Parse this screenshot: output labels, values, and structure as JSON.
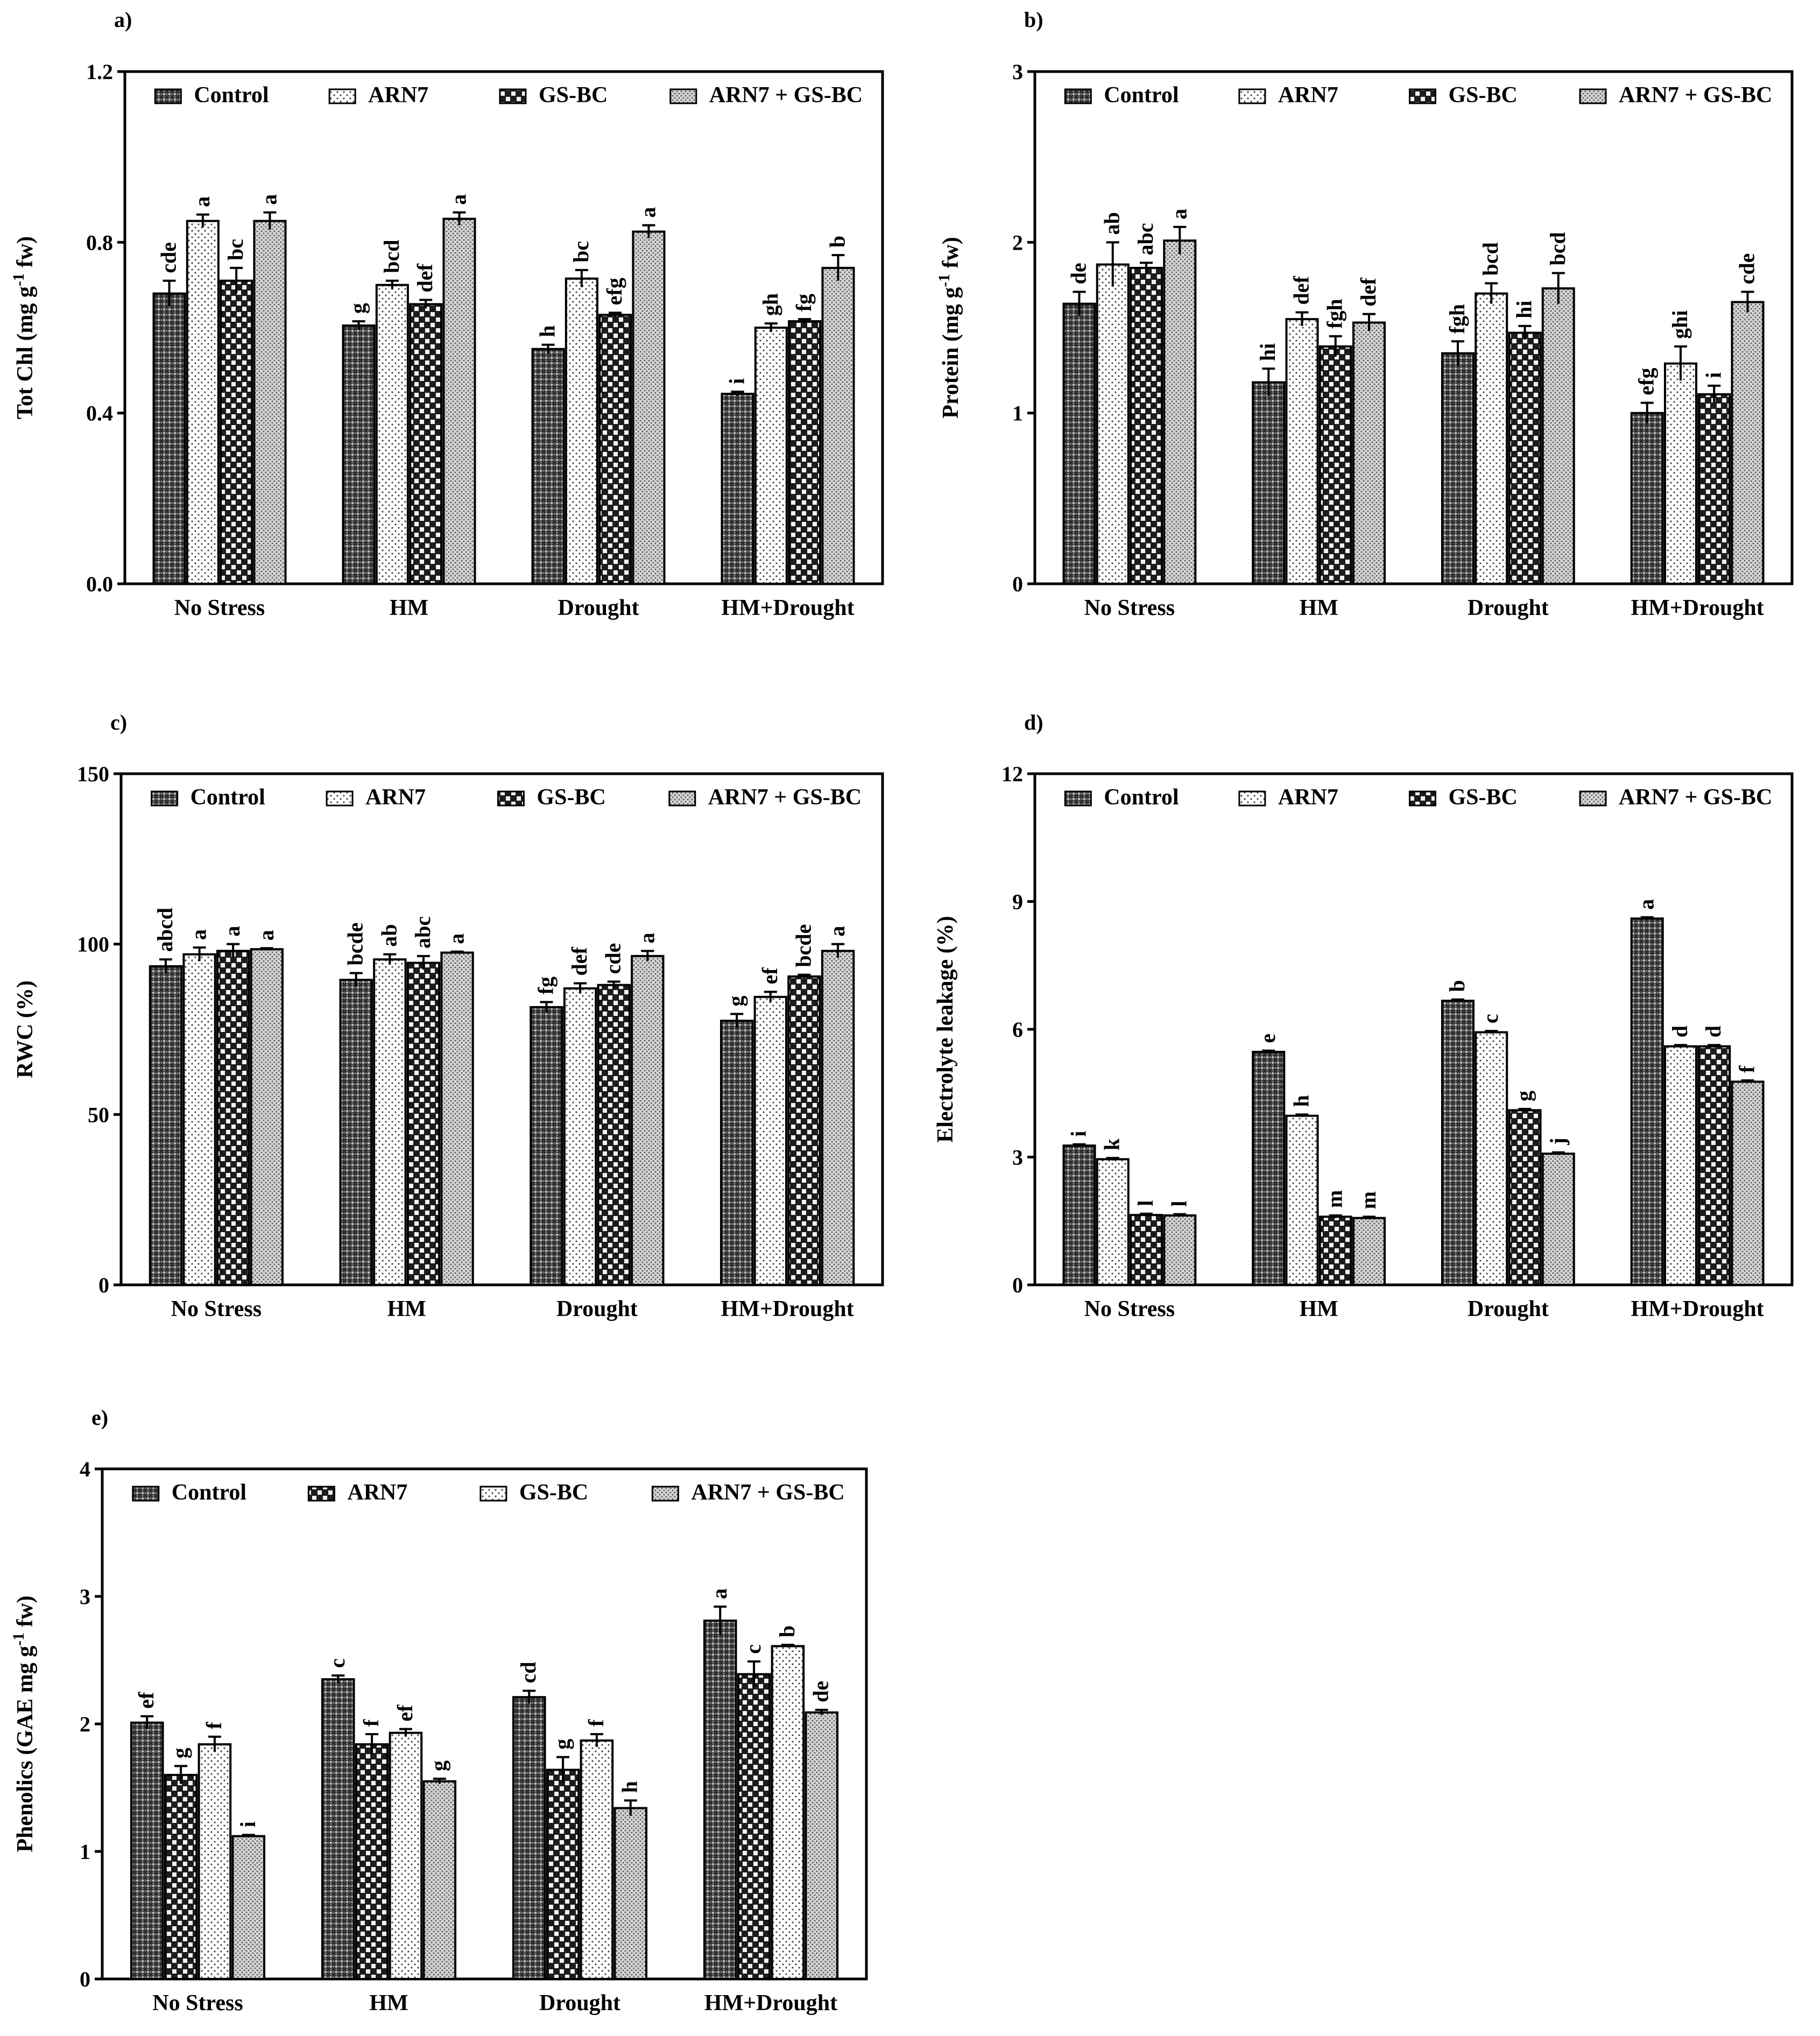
{
  "figure": {
    "categories": [
      "No Stress",
      "HM",
      "Drought",
      "HM+Drought"
    ]
  },
  "chart_data": [
    {
      "panel": "a)",
      "type": "bar",
      "ylabel_html": "Tot Chl (mg g<tspan baseline-shift='super' font-size='70%'>-1</tspan> fw)",
      "ylabel": "Tot Chl (mg g-1 fw)",
      "ylim": [
        0,
        1.2
      ],
      "yticks": [
        "0.0",
        "0.4",
        "0.8",
        "1.2"
      ],
      "ytick_values": [
        0,
        0.4,
        0.8,
        1.2
      ],
      "categories": [
        "No Stress",
        "HM",
        "Drought",
        "HM+Drought"
      ],
      "legend": [
        "Control",
        "ARN7",
        "GS-BC",
        "ARN7 + GS-BC"
      ],
      "patterns": [
        "dark",
        "dots",
        "check",
        "fine"
      ],
      "series": [
        {
          "name": "Control",
          "values": [
            0.68,
            0.605,
            0.55,
            0.445
          ],
          "errors": [
            0.03,
            0.01,
            0.01,
            0.005
          ],
          "letters": [
            "cde",
            "g",
            "h",
            "i"
          ]
        },
        {
          "name": "ARN7",
          "values": [
            0.85,
            0.7,
            0.715,
            0.6
          ],
          "errors": [
            0.015,
            0.01,
            0.02,
            0.01
          ],
          "letters": [
            "a",
            "bcd",
            "bc",
            "gh"
          ]
        },
        {
          "name": "GS-BC",
          "values": [
            0.71,
            0.655,
            0.63,
            0.615
          ],
          "errors": [
            0.03,
            0.01,
            0.005,
            0.005
          ],
          "letters": [
            "bc",
            "def",
            "efg",
            "fg"
          ]
        },
        {
          "name": "ARN7 + GS-BC",
          "values": [
            0.85,
            0.855,
            0.825,
            0.74
          ],
          "errors": [
            0.02,
            0.015,
            0.015,
            0.03
          ],
          "letters": [
            "a",
            "a",
            "a",
            "b"
          ]
        }
      ]
    },
    {
      "panel": "b)",
      "type": "bar",
      "ylabel_html": "Protein (mg g<tspan baseline-shift='super' font-size='70%'>-1</tspan> fw)",
      "ylabel": "Protein (mg g-1 fw)",
      "ylim": [
        0,
        3
      ],
      "yticks": [
        "0",
        "1",
        "2",
        "3"
      ],
      "ytick_values": [
        0,
        1,
        2,
        3
      ],
      "categories": [
        "No Stress",
        "HM",
        "Drought",
        "HM+Drought"
      ],
      "legend": [
        "Control",
        "ARN7",
        "GS-BC",
        "ARN7 + GS-BC"
      ],
      "patterns": [
        "dark",
        "dots",
        "check",
        "fine"
      ],
      "series": [
        {
          "name": "Control",
          "values": [
            1.64,
            1.18,
            1.35,
            1.0
          ],
          "errors": [
            0.07,
            0.08,
            0.07,
            0.06
          ],
          "letters": [
            "de",
            "hi",
            "fgh",
            "efg"
          ]
        },
        {
          "name": "ARN7",
          "values": [
            1.87,
            1.55,
            1.7,
            1.29
          ],
          "errors": [
            0.13,
            0.04,
            0.06,
            0.1
          ],
          "letters": [
            "ab",
            "def",
            "bcd",
            "ghi"
          ]
        },
        {
          "name": "GS-BC",
          "values": [
            1.85,
            1.39,
            1.47,
            1.11
          ],
          "errors": [
            0.03,
            0.06,
            0.04,
            0.05
          ],
          "letters": [
            "abc",
            "fgh",
            "hi",
            "i"
          ]
        },
        {
          "name": "ARN7 + GS-BC",
          "values": [
            2.01,
            1.53,
            1.73,
            1.65
          ],
          "errors": [
            0.08,
            0.05,
            0.09,
            0.06
          ],
          "letters": [
            "a",
            "def",
            "bcd",
            "cde"
          ]
        }
      ]
    },
    {
      "panel": "c)",
      "type": "bar",
      "ylabel_html": "RWC (%)",
      "ylabel": "RWC (%)",
      "ylim": [
        0,
        150
      ],
      "yticks": [
        "0",
        "50",
        "100",
        "150"
      ],
      "ytick_values": [
        0,
        50,
        100,
        150
      ],
      "categories": [
        "No Stress",
        "HM",
        "Drought",
        "HM+Drought"
      ],
      "legend": [
        "Control",
        "ARN7",
        "GS-BC",
        "ARN7 + GS-BC"
      ],
      "patterns": [
        "dark",
        "dots",
        "check",
        "fine"
      ],
      "series": [
        {
          "name": "Control",
          "values": [
            93.5,
            89.5,
            81.5,
            77.5
          ],
          "errors": [
            2,
            2,
            1.5,
            2
          ],
          "letters": [
            "abcd",
            "bcde",
            "fg",
            "g"
          ]
        },
        {
          "name": "ARN7",
          "values": [
            97,
            95.5,
            87,
            84.5
          ],
          "errors": [
            2,
            1.5,
            1.5,
            1.5
          ],
          "letters": [
            "a",
            "ab",
            "def",
            "ef"
          ]
        },
        {
          "name": "GS-BC",
          "values": [
            98,
            94.5,
            88,
            90.5
          ],
          "errors": [
            2,
            2,
            1,
            0.5
          ],
          "letters": [
            "a",
            "abc",
            "cde",
            "bcde"
          ]
        },
        {
          "name": "ARN7 + GS-BC",
          "values": [
            98.5,
            97.5,
            96.5,
            98
          ],
          "errors": [
            0.3,
            0.3,
            1.5,
            2
          ],
          "letters": [
            "a",
            "a",
            "a",
            "a"
          ]
        }
      ]
    },
    {
      "panel": "d)",
      "type": "bar",
      "ylabel_html": "Electrolyte leakage (%)",
      "ylabel": "Electrolyte leakage (%)",
      "ylim": [
        0,
        12
      ],
      "yticks": [
        "0",
        "3",
        "6",
        "9",
        "12"
      ],
      "ytick_values": [
        0,
        3,
        6,
        9,
        12
      ],
      "categories": [
        "No Stress",
        "HM",
        "Drought",
        "HM+Drought"
      ],
      "legend": [
        "Control",
        "ARN7",
        "GS-BC",
        "ARN7 + GS-BC"
      ],
      "patterns": [
        "dark",
        "dots",
        "check",
        "fine"
      ],
      "series": [
        {
          "name": "Control",
          "values": [
            3.27,
            5.47,
            6.67,
            8.6
          ],
          "errors": [
            0.03,
            0.03,
            0.03,
            0.03
          ],
          "letters": [
            "i",
            "e",
            "b",
            "a"
          ]
        },
        {
          "name": "ARN7",
          "values": [
            2.95,
            3.97,
            5.93,
            5.6
          ],
          "errors": [
            0.03,
            0.03,
            0.03,
            0.03
          ],
          "letters": [
            "k",
            "h",
            "c",
            "d"
          ]
        },
        {
          "name": "GS-BC",
          "values": [
            1.64,
            1.6,
            4.1,
            5.6
          ],
          "errors": [
            0.03,
            0.03,
            0.03,
            0.03
          ],
          "letters": [
            "l",
            "m",
            "g",
            "d"
          ]
        },
        {
          "name": "ARN7 + GS-BC",
          "values": [
            1.63,
            1.57,
            3.08,
            4.77
          ],
          "errors": [
            0.03,
            0.03,
            0.03,
            0.03
          ],
          "letters": [
            "l",
            "m",
            "j",
            "f"
          ]
        }
      ]
    },
    {
      "panel": "e)",
      "type": "bar",
      "ylabel_html": "Phenolics (GAE mg g<tspan baseline-shift='super' font-size='70%'>-1</tspan> fw)",
      "ylabel": "Phenolics (GAE mg g-1 fw)",
      "ylim": [
        0,
        4
      ],
      "yticks": [
        "0",
        "1",
        "2",
        "3",
        "4"
      ],
      "ytick_values": [
        0,
        1,
        2,
        3,
        4
      ],
      "categories": [
        "No Stress",
        "HM",
        "Drought",
        "HM+Drought"
      ],
      "legend": [
        "Control",
        "ARN7",
        "GS-BC",
        "ARN7 + GS-BC"
      ],
      "patterns": [
        "dark",
        "check",
        "dots",
        "fine"
      ],
      "series": [
        {
          "name": "Control",
          "values": [
            2.01,
            2.35,
            2.21,
            2.81
          ],
          "errors": [
            0.05,
            0.03,
            0.05,
            0.11
          ],
          "letters": [
            "ef",
            "c",
            "cd",
            "a"
          ]
        },
        {
          "name": "ARN7",
          "values": [
            1.6,
            1.84,
            1.64,
            2.39
          ],
          "errors": [
            0.07,
            0.08,
            0.1,
            0.1
          ],
          "letters": [
            "g",
            "f",
            "g",
            "c"
          ]
        },
        {
          "name": "GS-BC",
          "values": [
            1.84,
            1.93,
            1.87,
            2.61
          ],
          "errors": [
            0.06,
            0.03,
            0.05,
            0.01
          ],
          "letters": [
            "f",
            "ef",
            "f",
            "b"
          ]
        },
        {
          "name": "ARN7 + GS-BC",
          "values": [
            1.12,
            1.55,
            1.34,
            2.09
          ],
          "errors": [
            0.01,
            0.02,
            0.06,
            0.02
          ],
          "letters": [
            "i",
            "g",
            "h",
            "de"
          ]
        }
      ]
    }
  ]
}
